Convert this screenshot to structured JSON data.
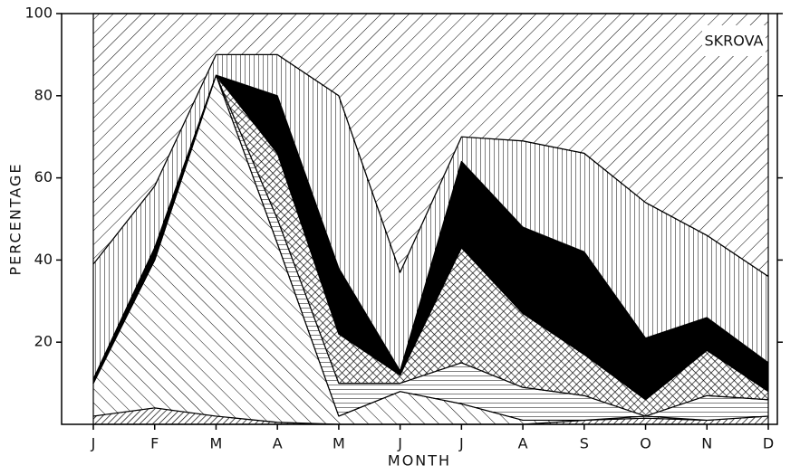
{
  "chart_data": {
    "type": "stacked-area",
    "annotation": "SKROVA",
    "xlabel": "MONTH",
    "ylabel": "PERCENTAGE",
    "categories": [
      "J",
      "F",
      "M",
      "A",
      "M",
      "J",
      "J",
      "A",
      "S",
      "O",
      "N",
      "D"
    ],
    "ylim": [
      0,
      100
    ],
    "yticks": [
      20,
      40,
      60,
      80,
      100
    ],
    "series": [
      {
        "pattern": "diag-dense",
        "color": "#000000",
        "values": [
          2,
          4,
          2,
          0.5,
          0,
          0,
          0,
          0,
          1,
          1.5,
          1,
          2
        ]
      },
      {
        "pattern": "backslash",
        "color": "#000000",
        "values": [
          8,
          36,
          83,
          43.5,
          2,
          8,
          5,
          1,
          0,
          0.5,
          0,
          0
        ]
      },
      {
        "pattern": "horizontal",
        "color": "#000000",
        "values": [
          0,
          0,
          0,
          6,
          8,
          2,
          10,
          8,
          6,
          0,
          6,
          4
        ]
      },
      {
        "pattern": "crosshatch",
        "color": "#000000",
        "values": [
          0,
          0,
          0,
          16,
          12,
          2,
          28,
          18,
          10,
          4,
          11,
          2
        ]
      },
      {
        "pattern": "solid",
        "color": "#000000",
        "values": [
          1,
          3,
          0,
          14,
          16,
          1,
          21,
          21,
          25,
          15,
          8,
          7
        ]
      },
      {
        "pattern": "vertical",
        "color": "#000000",
        "values": [
          28,
          15,
          5,
          10,
          42,
          24,
          6,
          21,
          24,
          33,
          20,
          21
        ]
      },
      {
        "pattern": "diag",
        "color": "#000000",
        "values": [
          61,
          42,
          10,
          10,
          20,
          63,
          30,
          31,
          34,
          46,
          54,
          64
        ]
      }
    ]
  }
}
